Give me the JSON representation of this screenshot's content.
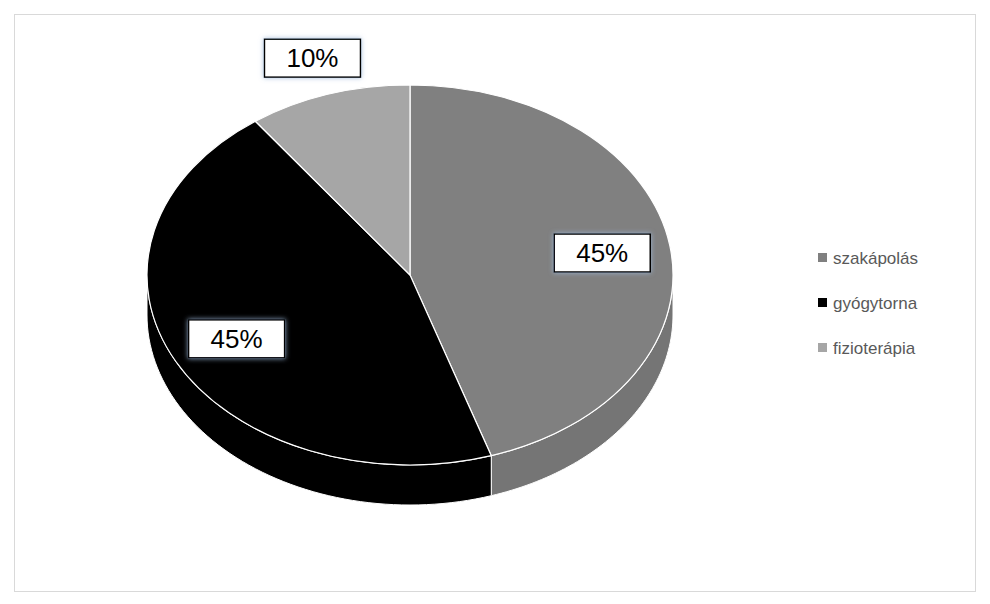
{
  "chart_data": {
    "type": "pie",
    "categories": [
      "szakápolás",
      "gyógytorna",
      "fizioterápia"
    ],
    "values": [
      45,
      45,
      10
    ],
    "value_labels": [
      "45%",
      "45%",
      "10%"
    ],
    "colors": [
      "#808080",
      "#000000",
      "#a6a6a6"
    ],
    "data_labels": true,
    "legend": "right"
  }
}
